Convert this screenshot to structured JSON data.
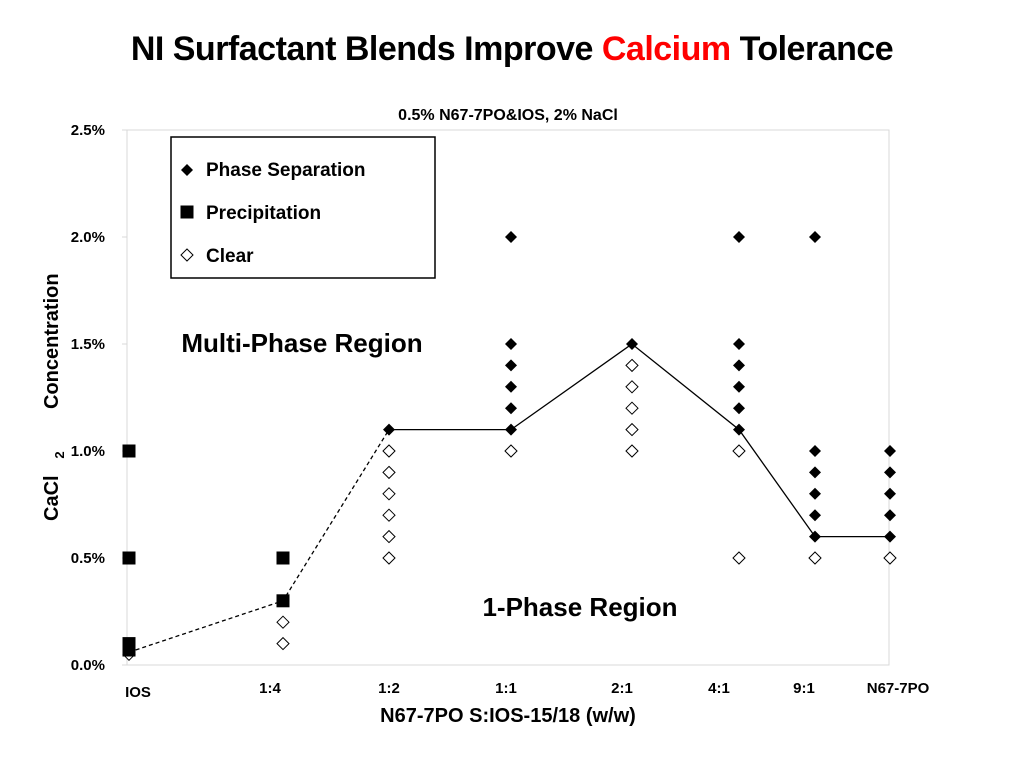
{
  "slide": {
    "title_before": "NI Surfactant Blends Improve ",
    "title_highlight": "Calcium",
    "title_after": " Tolerance",
    "highlight_color": "#ff0000"
  },
  "chart_data": {
    "type": "scatter",
    "title": "0.5% N67-7PO&IOS, 2% NaCl",
    "xlabel": "N67-7PO S:IOS-15/18 (w/w)",
    "ylabel": "CaCl2 Concentration",
    "ylabel_main": "CaCl",
    "ylabel_sub": "2",
    "ylabel_tail": "Concentration",
    "ylim": [
      0,
      2.5
    ],
    "y_unit": "%",
    "y_ticks": [
      "0.0%",
      "0.5%",
      "1.0%",
      "1.5%",
      "2.0%",
      "2.5%"
    ],
    "categories": [
      "IOS",
      "1:4",
      "1:2",
      "1:1",
      "2:1",
      "4:1",
      "9:1",
      "N67-7PO"
    ],
    "legend_position": "top-left",
    "grid": false,
    "series": [
      {
        "name": "Phase Separation",
        "marker": "filled-diamond",
        "points": [
          [
            "1:2",
            1.1
          ],
          [
            "1:1",
            1.1
          ],
          [
            "1:1",
            1.2
          ],
          [
            "1:1",
            1.3
          ],
          [
            "1:1",
            1.4
          ],
          [
            "1:1",
            1.5
          ],
          [
            "1:1",
            2.0
          ],
          [
            "2:1",
            1.5
          ],
          [
            "4:1",
            1.1
          ],
          [
            "4:1",
            1.2
          ],
          [
            "4:1",
            1.3
          ],
          [
            "4:1",
            1.4
          ],
          [
            "4:1",
            1.5
          ],
          [
            "4:1",
            2.0
          ],
          [
            "9:1",
            0.6
          ],
          [
            "9:1",
            0.7
          ],
          [
            "9:1",
            0.8
          ],
          [
            "9:1",
            0.9
          ],
          [
            "9:1",
            1.0
          ],
          [
            "9:1",
            2.0
          ],
          [
            "N67-7PO",
            0.6
          ],
          [
            "N67-7PO",
            0.7
          ],
          [
            "N67-7PO",
            0.8
          ],
          [
            "N67-7PO",
            0.9
          ],
          [
            "N67-7PO",
            1.0
          ]
        ]
      },
      {
        "name": "Precipitation",
        "marker": "filled-square",
        "points": [
          [
            "IOS",
            0.07
          ],
          [
            "IOS",
            0.1
          ],
          [
            "IOS",
            0.5
          ],
          [
            "IOS",
            1.0
          ],
          [
            "1:4",
            0.3
          ],
          [
            "1:4",
            0.5
          ]
        ]
      },
      {
        "name": "Clear",
        "marker": "open-diamond",
        "points": [
          [
            "IOS",
            0.05
          ],
          [
            "1:4",
            0.1
          ],
          [
            "1:4",
            0.2
          ],
          [
            "1:2",
            0.5
          ],
          [
            "1:2",
            0.6
          ],
          [
            "1:2",
            0.7
          ],
          [
            "1:2",
            0.8
          ],
          [
            "1:2",
            0.9
          ],
          [
            "1:2",
            1.0
          ],
          [
            "1:1",
            1.0
          ],
          [
            "2:1",
            1.0
          ],
          [
            "2:1",
            1.1
          ],
          [
            "2:1",
            1.2
          ],
          [
            "2:1",
            1.3
          ],
          [
            "2:1",
            1.4
          ],
          [
            "4:1",
            0.5
          ],
          [
            "4:1",
            1.0
          ],
          [
            "9:1",
            0.5
          ],
          [
            "N67-7PO",
            0.5
          ]
        ]
      }
    ],
    "boundary_dashed": [
      [
        "IOS",
        0.06
      ],
      [
        "1:4",
        0.3
      ],
      [
        "1:2",
        1.1
      ]
    ],
    "boundary_solid": [
      [
        "1:2",
        1.1
      ],
      [
        "1:1",
        1.1
      ],
      [
        "2:1",
        1.5
      ],
      [
        "4:1",
        1.1
      ],
      [
        "9:1",
        0.6
      ],
      [
        "N67-7PO",
        0.6
      ]
    ],
    "annotations": [
      {
        "text": "Multi-Phase Region",
        "region": "upper-left"
      },
      {
        "text": "1-Phase Region",
        "region": "lower-center"
      }
    ]
  }
}
